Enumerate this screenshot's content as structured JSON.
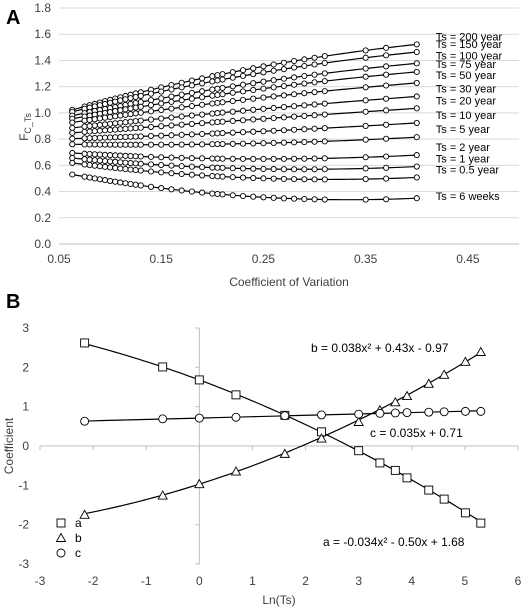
{
  "chart_data": [
    {
      "panel": "A",
      "type": "scatter",
      "title": "",
      "xlabel": "Coefficient of Variation",
      "ylabel_main": "F",
      "ylabel_sub": "C_Ts",
      "xlim": [
        0.05,
        0.5
      ],
      "ylim": [
        0,
        1.8
      ],
      "xticks": [
        "0.05",
        "0.15",
        "0.25",
        "0.35",
        "0.45"
      ],
      "yticks": [
        "0.0",
        "0.2",
        "0.4",
        "0.6",
        "0.8",
        "1.0",
        "1.2",
        "1.4",
        "1.6",
        "1.8"
      ],
      "grid": "horizontal",
      "cv_range": [
        0.06,
        0.4
      ],
      "series": [
        {
          "name": "Ts = 200 year",
          "a": -1.96,
          "b": 2.39,
          "c": 0.88
        },
        {
          "name": "Ts = 150 year",
          "a": -1.7,
          "b": 2.14,
          "c": 0.88
        },
        {
          "name": "Ts = 100 year",
          "a": -1.35,
          "b": 1.81,
          "c": 0.87
        },
        {
          "name": "Ts = 75 year",
          "a": -1.12,
          "b": 1.58,
          "c": 0.86
        },
        {
          "name": "Ts = 50 year",
          "a": -0.81,
          "b": 1.27,
          "c": 0.85
        },
        {
          "name": "Ts = 30 year",
          "a": -0.43,
          "b": 0.91,
          "c": 0.83
        },
        {
          "name": "Ts = 20 year",
          "a": -0.12,
          "b": 0.61,
          "c": 0.81
        },
        {
          "name": "Ts = 10 year",
          "a": 0.36,
          "b": 0.19,
          "c": 0.79
        },
        {
          "name": "Ts = 5 year",
          "a": 0.78,
          "b": -0.2,
          "c": 0.77
        },
        {
          "name": "Ts = 2 year",
          "a": 1.3,
          "b": -0.65,
          "c": 0.73
        },
        {
          "name": "Ts = 1 year",
          "a": 1.68,
          "b": -0.97,
          "c": 0.71
        },
        {
          "name": "Ts = 0.5 year",
          "a": 2.01,
          "b": -1.26,
          "c": 0.69
        },
        {
          "name": "Ts = 6 weeks",
          "a": 2.62,
          "b": -1.75,
          "c": 0.63
        }
      ]
    },
    {
      "panel": "B",
      "type": "scatter",
      "title": "",
      "xlabel": "Ln(Ts)",
      "ylabel": "Coefficient",
      "xlim": [
        -3,
        6
      ],
      "ylim": [
        -3,
        3
      ],
      "xticks": [
        "-3",
        "-2",
        "-1",
        "0",
        "1",
        "2",
        "3",
        "4",
        "5",
        "6"
      ],
      "yticks": [
        "-3",
        "-2",
        "-1",
        "0",
        "1",
        "2",
        "3"
      ],
      "grid": "none",
      "x": [
        -2.16,
        -0.69,
        0.0,
        0.69,
        1.61,
        2.3,
        3.0,
        3.4,
        3.69,
        3.91,
        4.32,
        4.61,
        5.01,
        5.3
      ],
      "series": [
        {
          "name": "a",
          "marker": "square",
          "fit": {
            "type": "quadratic",
            "c2": -0.034,
            "c1": -0.5,
            "c0": 1.68
          },
          "values": [
            2.62,
            2.01,
            1.68,
            1.3,
            0.78,
            0.36,
            -0.12,
            -0.43,
            -0.62,
            -0.81,
            -1.12,
            -1.35,
            -1.7,
            -1.96
          ]
        },
        {
          "name": "b",
          "marker": "triangle",
          "fit": {
            "type": "quadratic",
            "c2": 0.038,
            "c1": 0.43,
            "c0": -0.97
          },
          "values": [
            -1.75,
            -1.26,
            -0.97,
            -0.65,
            -0.2,
            0.19,
            0.61,
            0.91,
            1.11,
            1.27,
            1.58,
            1.81,
            2.14,
            2.39
          ]
        },
        {
          "name": "c",
          "marker": "circle",
          "fit": {
            "type": "linear",
            "c1": 0.035,
            "c0": 0.71
          },
          "values": [
            0.63,
            0.69,
            0.71,
            0.73,
            0.77,
            0.79,
            0.81,
            0.83,
            0.84,
            0.85,
            0.86,
            0.87,
            0.88,
            0.88
          ]
        }
      ],
      "equations": {
        "b": "b = 0.038x² + 0.43x - 0.97",
        "c": "c = 0.035x + 0.71",
        "a": "a = -0.034x² - 0.50x + 1.68"
      },
      "legend": [
        "a",
        "b",
        "c"
      ],
      "legend_placement": "bottom-left"
    }
  ]
}
